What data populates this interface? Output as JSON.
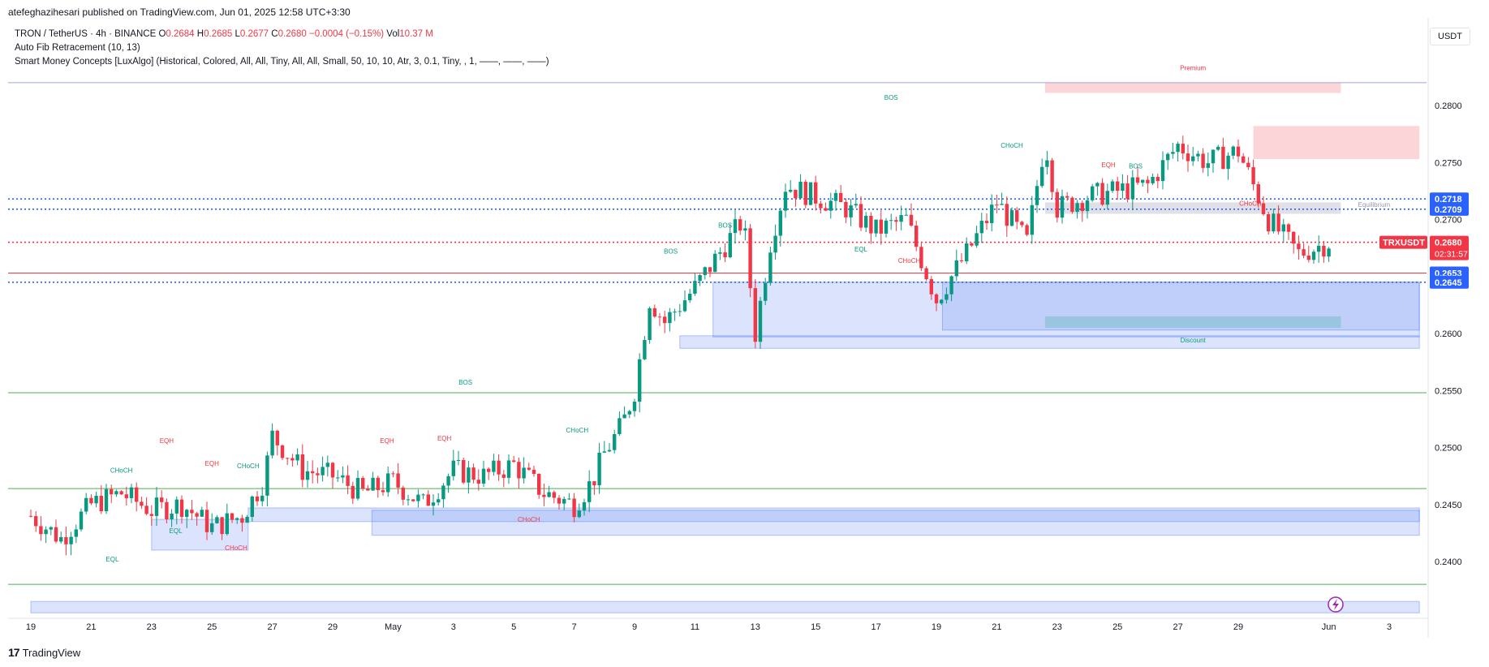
{
  "header": {
    "publisher_line": "atefeghazihesari published on TradingView.com, Jun 01, 2025 12:58 UTC+3:30"
  },
  "legend": {
    "symbol": "TRON / TetherUS · 4h · BINANCE",
    "o_label": "O",
    "o_value": "0.2684",
    "h_label": "H",
    "h_value": "0.2685",
    "l_label": "L",
    "l_value": "0.2677",
    "c_label": "C",
    "c_value": "0.2680",
    "change": "−0.0004 (−0.15%)",
    "vol_label": "Vol",
    "vol_value": "10.37 M",
    "indicator1": "Auto Fib Retracement (10, 13)",
    "indicator2": "Smart Money Concepts [LuxAlgo] (Historical, Colored, All, All, Tiny, All, All, Small, 50, 10, 10, Atr, 3, 0.1, Tiny, , 1, ——, ——, ——)"
  },
  "currency_button": "USDT",
  "footer": {
    "brand": "TradingView",
    "logo_mark": "17"
  },
  "colors": {
    "up": "#089981",
    "down": "#f23645",
    "blue": "#2962ff",
    "zone_blue": "#5b86f0",
    "premium": "#f7a1a8",
    "grid_green": "#4caf50"
  },
  "chart_data": {
    "type": "candlestick",
    "title": "TRON / TetherUS · 4h · BINANCE",
    "ylim": [
      0.236,
      0.2855
    ],
    "y_ticks": [
      "0.2800",
      "0.2750",
      "0.2700",
      "0.2650",
      "0.2600",
      "0.2550",
      "0.2500",
      "0.2450",
      "0.2400"
    ],
    "x_tick_labels": [
      {
        "label": "19",
        "day": 0
      },
      {
        "label": "21",
        "day": 2
      },
      {
        "label": "23",
        "day": 4
      },
      {
        "label": "25",
        "day": 6
      },
      {
        "label": "27",
        "day": 8
      },
      {
        "label": "29",
        "day": 10
      },
      {
        "label": "May",
        "day": 12
      },
      {
        "label": "3",
        "day": 14
      },
      {
        "label": "5",
        "day": 16
      },
      {
        "label": "7",
        "day": 18
      },
      {
        "label": "9",
        "day": 20
      },
      {
        "label": "11",
        "day": 22
      },
      {
        "label": "13",
        "day": 24
      },
      {
        "label": "15",
        "day": 26
      },
      {
        "label": "17",
        "day": 28
      },
      {
        "label": "19",
        "day": 30
      },
      {
        "label": "21",
        "day": 32
      },
      {
        "label": "23",
        "day": 34
      },
      {
        "label": "25",
        "day": 36
      },
      {
        "label": "27",
        "day": 38
      },
      {
        "label": "29",
        "day": 40
      },
      {
        "label": "Jun",
        "day": 43
      },
      {
        "label": "3",
        "day": 45
      }
    ],
    "close_path": [
      [
        0,
        0.244
      ],
      [
        1,
        0.242
      ],
      [
        2,
        0.245
      ],
      [
        3,
        0.246
      ],
      [
        4,
        0.2445
      ],
      [
        5,
        0.245
      ],
      [
        6,
        0.243
      ],
      [
        7,
        0.244
      ],
      [
        7.7,
        0.247
      ],
      [
        8,
        0.251
      ],
      [
        9,
        0.248
      ],
      [
        10,
        0.2475
      ],
      [
        11,
        0.246
      ],
      [
        12,
        0.247
      ],
      [
        13,
        0.245
      ],
      [
        14,
        0.248
      ],
      [
        15,
        0.2475
      ],
      [
        16,
        0.2485
      ],
      [
        17,
        0.246
      ],
      [
        18,
        0.245
      ],
      [
        18.6,
        0.247
      ],
      [
        19,
        0.2495
      ],
      [
        19.6,
        0.252
      ],
      [
        20,
        0.255
      ],
      [
        20.5,
        0.263
      ],
      [
        21,
        0.261
      ],
      [
        22,
        0.264
      ],
      [
        22.8,
        0.267
      ],
      [
        23.6,
        0.27
      ],
      [
        24,
        0.26
      ],
      [
        24.5,
        0.268
      ],
      [
        25,
        0.273
      ],
      [
        26,
        0.272
      ],
      [
        27,
        0.271
      ],
      [
        28,
        0.269
      ],
      [
        29,
        0.27
      ],
      [
        30,
        0.263
      ],
      [
        31,
        0.267
      ],
      [
        32,
        0.2715
      ],
      [
        33,
        0.268
      ],
      [
        33.6,
        0.277
      ],
      [
        34,
        0.271
      ],
      [
        35,
        0.272
      ],
      [
        36,
        0.2725
      ],
      [
        37,
        0.273
      ],
      [
        38,
        0.2765
      ],
      [
        39,
        0.275
      ],
      [
        40,
        0.276
      ],
      [
        41,
        0.27
      ],
      [
        42,
        0.267
      ],
      [
        43,
        0.268
      ]
    ],
    "last_price": "0.2680",
    "countdown": "02:31:57",
    "symbol_badge": "TRXUSDT",
    "price_badges": [
      "0.2718",
      "0.2709",
      "0.2653",
      "0.2645"
    ],
    "horizontal_levels": [
      {
        "price": 0.2718,
        "style": "dotted",
        "color": "#2962ff"
      },
      {
        "price": 0.2709,
        "style": "dotted",
        "color": "#2962ff"
      },
      {
        "price": 0.2653,
        "style": "solid",
        "color": "#f23645"
      },
      {
        "price": 0.2645,
        "style": "dotted",
        "color": "#2962ff"
      },
      {
        "price": 0.268,
        "style": "dotted",
        "color": "#f23645"
      },
      {
        "price": 0.282,
        "style": "solid",
        "color": "#9fa8da"
      },
      {
        "price": 0.2548,
        "style": "solid",
        "color": "#4caf50"
      },
      {
        "price": 0.2464,
        "style": "solid",
        "color": "#4caf50"
      },
      {
        "price": 0.238,
        "style": "solid",
        "color": "#4caf50"
      }
    ],
    "zones": [
      {
        "kind": "demand",
        "x0": 22.6,
        "x1": 46,
        "y0": 0.2645,
        "y1": 0.2597
      },
      {
        "kind": "demand",
        "x0": 30.2,
        "x1": 46,
        "y0": 0.2645,
        "y1": 0.2603
      },
      {
        "kind": "demand",
        "x0": 7.2,
        "x1": 46,
        "y0": 0.2447,
        "y1": 0.2435
      },
      {
        "kind": "demand",
        "x0": 11.3,
        "x1": 46,
        "y0": 0.2445,
        "y1": 0.2423
      },
      {
        "kind": "demand",
        "x0": 4,
        "x1": 7.2,
        "y0": 0.2437,
        "y1": 0.241
      },
      {
        "kind": "demand",
        "x0": 0,
        "x1": 46,
        "y0": 0.2365,
        "y1": 0.2355
      },
      {
        "kind": "demand",
        "x0": 21.5,
        "x1": 46,
        "y0": 0.2598,
        "y1": 0.2587
      },
      {
        "kind": "supply",
        "x0": 33.6,
        "x1": 43.4,
        "y0": 0.282,
        "y1": 0.2811
      },
      {
        "kind": "supply",
        "x0": 40.5,
        "x1": 46,
        "y0": 0.2782,
        "y1": 0.2753
      },
      {
        "kind": "equilibrium",
        "x0": 33.6,
        "x1": 43.4,
        "y0": 0.2715,
        "y1": 0.2705
      },
      {
        "kind": "discount-band",
        "x0": 33.6,
        "x1": 43.4,
        "y0": 0.2615,
        "y1": 0.2605
      }
    ],
    "structure_labels": [
      {
        "text": "BOS",
        "day": 14.4,
        "price": 0.2555,
        "color": "#089981"
      },
      {
        "text": "BOS",
        "day": 28.5,
        "price": 0.2805,
        "color": "#089981"
      },
      {
        "text": "BOS",
        "day": 23,
        "price": 0.2693,
        "color": "#089981"
      },
      {
        "text": "BOS",
        "day": 21.2,
        "price": 0.267,
        "color": "#089981"
      },
      {
        "text": "BOS",
        "day": 36.6,
        "price": 0.2745,
        "color": "#089981"
      },
      {
        "text": "CHoCH",
        "day": 32.5,
        "price": 0.2763,
        "color": "#089981"
      },
      {
        "text": "CHoCH",
        "day": 3,
        "price": 0.2478,
        "color": "#089981"
      },
      {
        "text": "CHoCH",
        "day": 7.2,
        "price": 0.2482,
        "color": "#089981"
      },
      {
        "text": "CHoCH",
        "day": 18.1,
        "price": 0.2513,
        "color": "#089981"
      },
      {
        "text": "CHoCH",
        "day": 29.1,
        "price": 0.2662,
        "color": "#f23645"
      },
      {
        "text": "CHoCH",
        "day": 6.8,
        "price": 0.241,
        "color": "#f23645"
      },
      {
        "text": "CHoCH",
        "day": 16.5,
        "price": 0.2435,
        "color": "#f23645"
      },
      {
        "text": "CHoCH",
        "day": 40.4,
        "price": 0.2712,
        "color": "#f23645"
      },
      {
        "text": "EQH",
        "day": 4.5,
        "price": 0.2504,
        "color": "#f23645"
      },
      {
        "text": "EQH",
        "day": 6,
        "price": 0.2484,
        "color": "#f23645"
      },
      {
        "text": "EQH",
        "day": 11.8,
        "price": 0.2504,
        "color": "#f23645"
      },
      {
        "text": "EQH",
        "day": 13.7,
        "price": 0.2506,
        "color": "#f23645"
      },
      {
        "text": "EQH",
        "day": 35.7,
        "price": 0.2746,
        "color": "#f23645"
      },
      {
        "text": "EQL",
        "day": 4.8,
        "price": 0.2425,
        "color": "#089981"
      },
      {
        "text": "EQL",
        "day": 2.7,
        "price": 0.24,
        "color": "#089981"
      },
      {
        "text": "EQL",
        "day": 27.5,
        "price": 0.2672,
        "color": "#089981"
      },
      {
        "text": "Premium",
        "day": 38.5,
        "price": 0.2831,
        "color": "#f23645"
      },
      {
        "text": "Discount",
        "day": 38.5,
        "price": 0.2592,
        "color": "#089981"
      },
      {
        "text": "Equilibrium",
        "day": 44.5,
        "price": 0.2711,
        "color": "#9598a1"
      }
    ]
  }
}
